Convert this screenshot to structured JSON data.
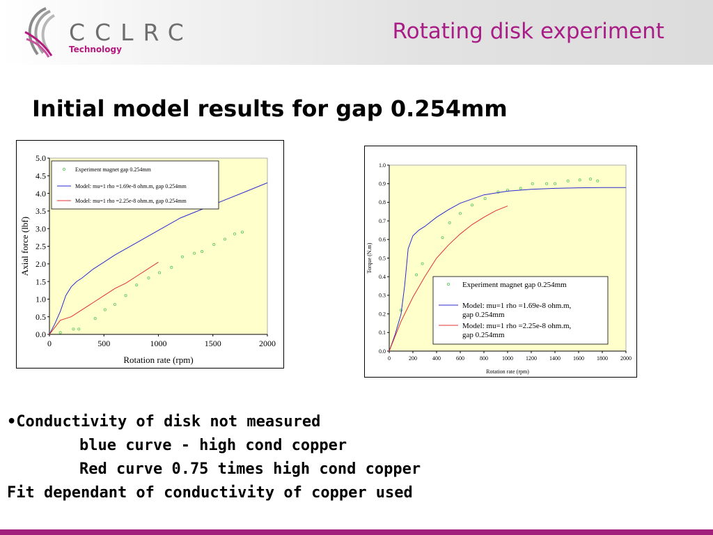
{
  "header": {
    "logo_name": "CCLRC",
    "logo_sub": "Technology",
    "title": "Rotating disk experiment"
  },
  "subtitle": "Initial model results for gap 0.254mm",
  "colors": {
    "accent": "#a81d86",
    "plot_bg": "#ffffcc",
    "experiment": "#66cc66",
    "model_blue": "#2a2ad0",
    "model_red": "#e03030",
    "footer": "#a0207c"
  },
  "bullets": {
    "line1": "•Conductivity of disk not measured",
    "line2": "blue curve - high cond copper",
    "line3": "Red curve 0.75 times high cond copper",
    "line4": "Fit dependant of conductivity of copper used"
  },
  "chart_data": [
    {
      "type": "scatter",
      "xlabel": "Rotation rate (rpm)",
      "ylabel": "Axial force (lbf)",
      "xlim": [
        0,
        2000
      ],
      "ylim": [
        0,
        5.0
      ],
      "xticks": [
        "0",
        "500",
        "1000",
        "1500",
        "2000"
      ],
      "yticks": [
        "0.0",
        "0.5",
        "1.0",
        "1.5",
        "2.0",
        "2.5",
        "3.0",
        "3.5",
        "4.0",
        "4.5",
        "5.0"
      ],
      "grid": false,
      "legend_position": "top-left",
      "series": [
        {
          "name": "Experiment magnet gap 0.254mm",
          "kind": "markers",
          "color": "#66cc66",
          "x": [
            100,
            220,
            270,
            420,
            510,
            600,
            700,
            800,
            910,
            1010,
            1120,
            1220,
            1330,
            1400,
            1510,
            1610,
            1700,
            1770
          ],
          "y": [
            0.05,
            0.15,
            0.15,
            0.45,
            0.7,
            0.85,
            1.1,
            1.4,
            1.6,
            1.75,
            1.9,
            2.2,
            2.3,
            2.35,
            2.55,
            2.7,
            2.85,
            2.9
          ]
        },
        {
          "name": "Model: mu=1 rho =1.69e-8 ohm.m, gap 0.254mm",
          "kind": "line",
          "color": "#2a2ad0",
          "x": [
            0,
            50,
            100,
            150,
            200,
            250,
            300,
            400,
            500,
            600,
            800,
            1000,
            1200,
            1400,
            1600,
            1800,
            2000
          ],
          "y": [
            0,
            0.3,
            0.65,
            1.1,
            1.35,
            1.5,
            1.6,
            1.85,
            2.05,
            2.25,
            2.6,
            2.95,
            3.3,
            3.55,
            3.8,
            4.05,
            4.3
          ]
        },
        {
          "name": "Model: mu=1 rho =2.25e-8 ohm.m, gap 0.254mm",
          "kind": "line",
          "color": "#e03030",
          "x": [
            0,
            50,
            100,
            150,
            200,
            300,
            400,
            500,
            600,
            700,
            800,
            900,
            1000
          ],
          "y": [
            0,
            0.2,
            0.4,
            0.45,
            0.5,
            0.7,
            0.9,
            1.1,
            1.3,
            1.45,
            1.65,
            1.85,
            2.05
          ]
        }
      ]
    },
    {
      "type": "scatter",
      "xlabel": "Rotation rate (rpm)",
      "ylabel": "Torque (N.m)",
      "xlim": [
        0,
        2000
      ],
      "ylim": [
        0,
        1.0
      ],
      "xticks": [
        "0",
        "200",
        "400",
        "600",
        "800",
        "1000",
        "1200",
        "1400",
        "1600",
        "1800",
        "2000"
      ],
      "yticks": [
        "0.0",
        "0.1",
        "0.2",
        "0.3",
        "0.4",
        "0.5",
        "0.6",
        "0.7",
        "0.8",
        "0.9",
        "1.0"
      ],
      "grid": false,
      "legend_position": "bottom-right",
      "series": [
        {
          "name": "Experiment magnet gap 0.254mm",
          "kind": "markers",
          "color": "#66cc66",
          "x": [
            100,
            230,
            280,
            450,
            510,
            600,
            700,
            810,
            920,
            1000,
            1110,
            1210,
            1330,
            1400,
            1510,
            1610,
            1700,
            1760
          ],
          "y": [
            0.22,
            0.41,
            0.47,
            0.61,
            0.69,
            0.74,
            0.785,
            0.82,
            0.855,
            0.865,
            0.875,
            0.9,
            0.9,
            0.9,
            0.915,
            0.92,
            0.925,
            0.915
          ]
        },
        {
          "name": "Model: mu=1 rho =1.69e-8 ohm.m, gap 0.254mm",
          "kind": "line",
          "color": "#2a2ad0",
          "x": [
            0,
            50,
            100,
            130,
            160,
            200,
            250,
            300,
            400,
            500,
            600,
            800,
            1000,
            1200,
            1400,
            1600,
            1800,
            2000
          ],
          "y": [
            0,
            0.09,
            0.2,
            0.35,
            0.55,
            0.62,
            0.65,
            0.67,
            0.72,
            0.76,
            0.795,
            0.84,
            0.86,
            0.87,
            0.875,
            0.878,
            0.879,
            0.879
          ]
        },
        {
          "name": "Model: mu=1 rho =2.25e-8 ohm.m, gap 0.254mm",
          "kind": "line",
          "color": "#e03030",
          "x": [
            0,
            100,
            200,
            300,
            400,
            500,
            600,
            700,
            800,
            900,
            1000
          ],
          "y": [
            0,
            0.16,
            0.29,
            0.4,
            0.5,
            0.57,
            0.63,
            0.68,
            0.72,
            0.755,
            0.78
          ]
        }
      ]
    }
  ]
}
